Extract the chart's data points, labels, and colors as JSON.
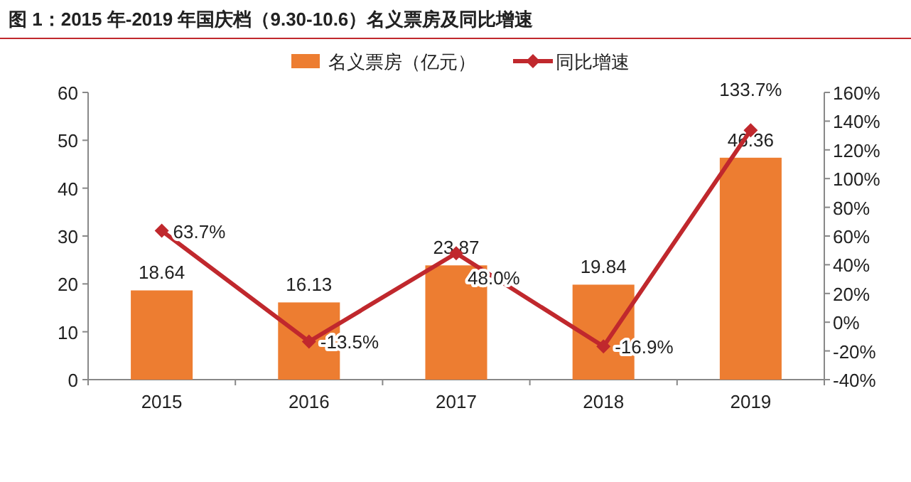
{
  "chart_data": {
    "type": "bar",
    "title": "图 1：2015 年-2019 年国庆档（9.30-10.6）名义票房及同比增速",
    "categories": [
      "2015",
      "2016",
      "2017",
      "2018",
      "2019"
    ],
    "series": [
      {
        "name": "名义票房（亿元）",
        "color": "#ed7d31",
        "values": [
          18.64,
          16.13,
          23.87,
          19.84,
          46.36
        ],
        "value_labels": [
          "18.64",
          "16.13",
          "23.87",
          "19.84",
          "46.36"
        ]
      },
      {
        "name": "同比增速",
        "type": "line",
        "axis": "y2",
        "color": "#c0282d",
        "marker": "diamond",
        "values": [
          63.7,
          -13.5,
          48.0,
          -16.9,
          133.7
        ],
        "value_labels": [
          "63.7%",
          "-13.5%",
          "48.0%",
          "-16.9%",
          "133.7%"
        ]
      }
    ],
    "ylim": [
      0,
      60
    ],
    "yticks": [
      0,
      10,
      20,
      30,
      40,
      50,
      60
    ],
    "y2lim": [
      -40,
      160
    ],
    "y2ticks": [
      {
        "value": -40,
        "label": "-40%"
      },
      {
        "value": -20,
        "label": "-20%"
      },
      {
        "value": 0,
        "label": "0%"
      },
      {
        "value": 20,
        "label": "20%"
      },
      {
        "value": 40,
        "label": "40%"
      },
      {
        "value": 60,
        "label": "60%"
      },
      {
        "value": 80,
        "label": "80%"
      },
      {
        "value": 100,
        "label": "100%"
      },
      {
        "value": 120,
        "label": "120%"
      },
      {
        "value": 140,
        "label": "140%"
      },
      {
        "value": 160,
        "label": "160%"
      }
    ],
    "legend": "top",
    "grid": false
  }
}
